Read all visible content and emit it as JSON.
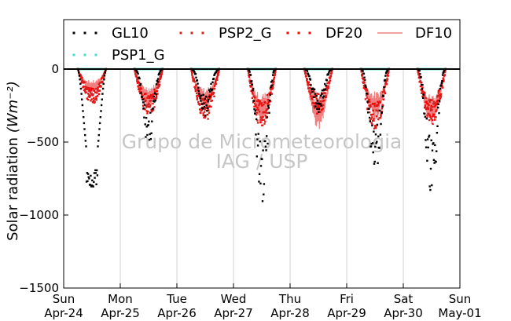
{
  "chart_data": {
    "type": "scatter",
    "ylabel": "Solar radiation",
    "ylabel_unit": "(Wm⁻²)",
    "ylim": [
      -1500,
      0
    ],
    "yticks": [
      0,
      -500,
      -1000,
      -1500
    ],
    "xlim": [
      "2022-04-24",
      "2022-05-01"
    ],
    "xticks": [
      {
        "day": "Sun",
        "date": "Apr-24"
      },
      {
        "day": "Mon",
        "date": "Apr-25"
      },
      {
        "day": "Tue",
        "date": "Apr-26"
      },
      {
        "day": "Wed",
        "date": "Apr-27"
      },
      {
        "day": "Thu",
        "date": "Apr-28"
      },
      {
        "day": "Fri",
        "date": "Apr-29"
      },
      {
        "day": "Sat",
        "date": "Apr-30"
      },
      {
        "day": "Sun",
        "date": "May-01"
      }
    ],
    "grid": "vertical",
    "legend_position": "top",
    "watermark": [
      "Grupo de Micrometeorologia",
      "IAG / USP"
    ],
    "series": [
      {
        "name": "GL10",
        "style": "dots",
        "color": "#000000",
        "daily_peak": [
          -810,
          -530,
          -330,
          -920,
          -320,
          -740,
          -880
        ]
      },
      {
        "name": "PSP2_G",
        "style": "dots",
        "color": "#d62020",
        "daily_peak": [
          -240,
          -330,
          -360,
          -410,
          -300,
          -420,
          -390
        ]
      },
      {
        "name": "DF20",
        "style": "dots",
        "color": "#ff0000",
        "daily_peak": [
          -240,
          -320,
          -350,
          -390,
          -310,
          -410,
          -380
        ]
      },
      {
        "name": "DF10",
        "style": "line",
        "color": "#f08080",
        "daily_peak": [
          -140,
          -210,
          -230,
          -300,
          -330,
          -280,
          -310
        ]
      },
      {
        "name": "PSP1_G",
        "style": "dots",
        "color": "#40e0d0",
        "daily_peak": [
          0,
          0,
          0,
          0,
          0,
          0,
          0
        ]
      }
    ]
  }
}
